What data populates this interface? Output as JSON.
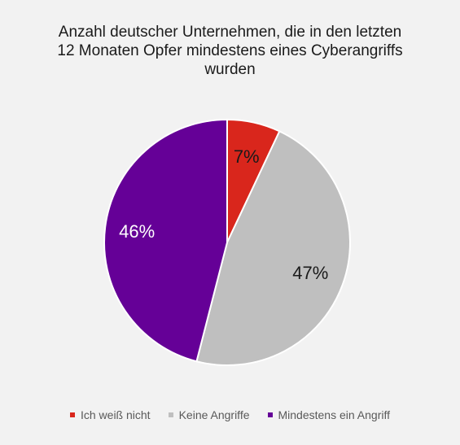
{
  "chart_data": {
    "type": "pie",
    "title_lines": [
      "Anzahl deutscher Unternehmen, die in den letzten",
      "12 Monaten Opfer mindestens eines Cyberangriffs",
      "wurden"
    ],
    "categories": [
      "Ich weiß nicht",
      "Keine Angriffe",
      "Mindestens ein Angriff"
    ],
    "values": [
      7,
      47,
      46
    ],
    "data_labels": [
      "7%",
      "47%",
      "46%"
    ],
    "colors": [
      "#d9261c",
      "#bfbfbf",
      "#650097"
    ],
    "label_colors": [
      "#1a1a1a",
      "#1a1a1a",
      "#ffffff"
    ],
    "legend_position": "bottom"
  }
}
